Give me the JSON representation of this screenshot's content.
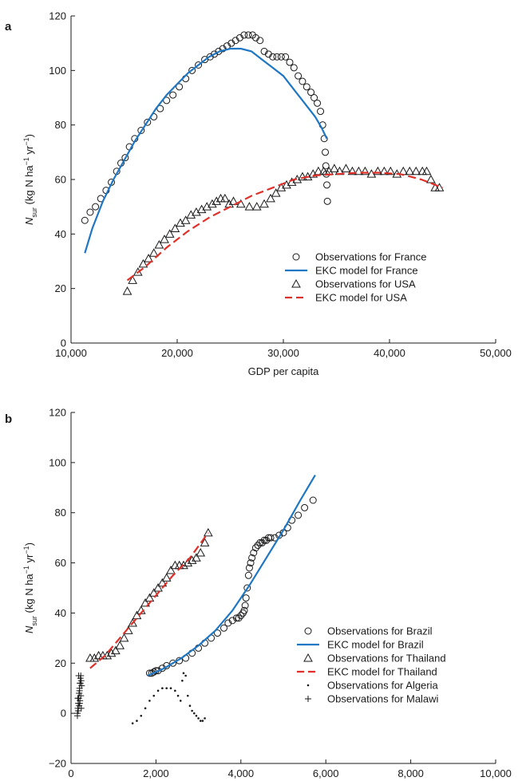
{
  "colors": {
    "france_model": "#1f77c4",
    "usa_model": "#e0302a",
    "brazil_model": "#1f77c4",
    "thailand_model": "#e0302a",
    "markers": "#1a1a1a"
  },
  "chart_data": [
    {
      "panel": "a",
      "type": "scatter",
      "xlabel": "GDP per capita",
      "ylabel": {
        "main": "N",
        "sub": "sur",
        "units_a": " (kg N ha",
        "sup1": "−1",
        "units_b": " yr",
        "sup2": "−1",
        "units_c": ")"
      },
      "xlim": [
        10000,
        50000
      ],
      "ylim": [
        0,
        120
      ],
      "xticks": [
        10000,
        20000,
        30000,
        40000,
        50000
      ],
      "xtick_labels": [
        "10,000",
        "20,000",
        "30,000",
        "40,000",
        "50,000"
      ],
      "yticks": [
        0,
        20,
        40,
        60,
        80,
        100,
        120
      ],
      "ytick_labels": [
        "0",
        "20",
        "40",
        "60",
        "80",
        "100",
        "120"
      ],
      "legend_position": "bottom-right",
      "series": [
        {
          "name": "Observations for France",
          "style": "circle",
          "x": [
            11300,
            11800,
            12300,
            12800,
            13300,
            13800,
            14300,
            14700,
            15100,
            15500,
            16000,
            16600,
            17200,
            17800,
            18400,
            19000,
            19600,
            20200,
            20800,
            21400,
            22000,
            22600,
            23100,
            23500,
            23900,
            24300,
            24700,
            25100,
            25500,
            25900,
            26300,
            26700,
            27100,
            27400,
            27800,
            28200,
            28600,
            29000,
            29400,
            29800,
            30200,
            30600,
            31000,
            31400,
            31800,
            32200,
            32600,
            32900,
            33200,
            33500,
            33700,
            33850,
            33950,
            34000,
            34050,
            34100,
            34150
          ],
          "y": [
            45,
            48,
            50,
            53,
            56,
            59,
            63,
            66,
            68,
            72,
            75,
            78,
            81,
            83,
            86,
            89,
            91,
            94,
            97,
            100,
            102,
            104,
            105,
            106,
            107,
            108,
            109,
            110,
            111,
            112,
            113,
            113,
            113,
            112,
            111,
            107,
            106,
            105,
            105,
            105,
            105,
            103,
            101,
            98,
            96,
            94,
            92,
            90,
            88,
            85,
            80,
            75,
            70,
            65,
            62,
            58,
            52
          ]
        },
        {
          "name": "EKC model for France",
          "style": "line",
          "color": "#1f77c4",
          "x": [
            11300,
            12000,
            13000,
            14000,
            15000,
            16000,
            17000,
            18000,
            19000,
            20000,
            21000,
            22000,
            23000,
            24000,
            25000,
            26000,
            27000,
            28000,
            29000,
            30000,
            31000,
            32000,
            33000,
            33600,
            34100
          ],
          "y": [
            33,
            42,
            52,
            60,
            67,
            74,
            80,
            86,
            91,
            95,
            99,
            102,
            105,
            107,
            108,
            108,
            107,
            104,
            101,
            98,
            93,
            88,
            83,
            79,
            75
          ]
        },
        {
          "name": "Observations for USA",
          "style": "triangle",
          "x": [
            15300,
            15800,
            16300,
            16800,
            17300,
            17800,
            18300,
            18800,
            19300,
            19800,
            20300,
            20800,
            21300,
            21800,
            22300,
            22800,
            23300,
            23700,
            24100,
            24500,
            24900,
            25300,
            26000,
            26800,
            27500,
            28200,
            28800,
            29300,
            29800,
            30300,
            30800,
            31300,
            31800,
            32300,
            32800,
            33300,
            33800,
            34300,
            34800,
            35300,
            35900,
            36500,
            37100,
            37700,
            38300,
            38900,
            39500,
            40100,
            40700,
            41300,
            41900,
            42500,
            43100,
            43500,
            43900,
            44300,
            44700
          ],
          "y": [
            19,
            23,
            26,
            29,
            31,
            33,
            36,
            38,
            40,
            42,
            44,
            45,
            47,
            48,
            49,
            50,
            51,
            52,
            53,
            53,
            51,
            52,
            51,
            50,
            50,
            51,
            53,
            55,
            57,
            58,
            59,
            60,
            61,
            61,
            62,
            63,
            63,
            63,
            64,
            63,
            64,
            63,
            63,
            63,
            62,
            63,
            63,
            63,
            62,
            63,
            63,
            63,
            63,
            63,
            60,
            57,
            57
          ]
        },
        {
          "name": "EKC model for USA",
          "style": "dashed",
          "color": "#e0302a",
          "x": [
            15300,
            17000,
            19000,
            21000,
            23000,
            25000,
            27000,
            29000,
            31000,
            33000,
            35000,
            37000,
            39000,
            41000,
            43000,
            45000
          ],
          "y": [
            23,
            28,
            35,
            41,
            46,
            50,
            54,
            57,
            60,
            61.5,
            62,
            62.5,
            62.5,
            62,
            60,
            57
          ]
        }
      ]
    },
    {
      "panel": "b",
      "type": "scatter",
      "xlabel": "GDP per capita",
      "ylabel": {
        "main": "N",
        "sub": "sur",
        "units_a": " (kg N ha",
        "sup1": "−1",
        "units_b": " yr",
        "sup2": "−1",
        "units_c": ")"
      },
      "xlim": [
        0,
        10000
      ],
      "ylim": [
        -20,
        120
      ],
      "xticks": [
        0,
        2000,
        4000,
        6000,
        8000,
        10000
      ],
      "xtick_labels": [
        "0",
        "2,000",
        "4,000",
        "6,000",
        "8,000",
        "10,000"
      ],
      "yticks": [
        -20,
        0,
        20,
        40,
        60,
        80,
        100,
        120
      ],
      "ytick_labels": [
        "−20",
        "0",
        "20",
        "40",
        "60",
        "80",
        "100",
        "120"
      ],
      "legend_position": "bottom-right",
      "series": [
        {
          "name": "Observations for Brazil",
          "style": "circle",
          "x": [
            1850,
            1900,
            1950,
            2000,
            2050,
            2150,
            2250,
            2400,
            2550,
            2700,
            2850,
            3000,
            3150,
            3300,
            3450,
            3600,
            3700,
            3800,
            3900,
            3950,
            4000,
            4050,
            4080,
            4100,
            4120,
            4150,
            4180,
            4200,
            4230,
            4260,
            4300,
            4350,
            4400,
            4450,
            4500,
            4550,
            4600,
            4650,
            4700,
            4800,
            4900,
            5000,
            5100,
            5200,
            5350,
            5500,
            5700
          ],
          "y": [
            16,
            16,
            16.5,
            17,
            17,
            18,
            19,
            20,
            21,
            22,
            24,
            26,
            28,
            30,
            32,
            34,
            36,
            37,
            38,
            38,
            39,
            40,
            41,
            43,
            46,
            50,
            55,
            58,
            60,
            62,
            64,
            66,
            67,
            68,
            68,
            69,
            69,
            70,
            70,
            70,
            71,
            72,
            74,
            77,
            79,
            82,
            85
          ]
        },
        {
          "name": "EKC model for Brazil",
          "style": "line",
          "color": "#1f77c4",
          "x": [
            1800,
            2200,
            2600,
            3000,
            3400,
            3800,
            4200,
            4600,
            5000,
            5400,
            5750
          ],
          "y": [
            15,
            18,
            22,
            27,
            33,
            41,
            51,
            62,
            73,
            85,
            95
          ]
        },
        {
          "name": "Observations for Thailand",
          "style": "triangle",
          "x": [
            450,
            550,
            650,
            750,
            850,
            950,
            1050,
            1150,
            1250,
            1350,
            1450,
            1550,
            1650,
            1750,
            1850,
            1950,
            2050,
            2150,
            2250,
            2350,
            2450,
            2550,
            2650,
            2750,
            2850,
            2950,
            3050,
            3150,
            3230
          ],
          "y": [
            22,
            22,
            23,
            23,
            23,
            24,
            25,
            27,
            30,
            33,
            36,
            39,
            41,
            44,
            46,
            48,
            50,
            52,
            54,
            57,
            59,
            59,
            59,
            60,
            61,
            62,
            64,
            68,
            72
          ]
        },
        {
          "name": "EKC model for Thailand",
          "style": "dashed",
          "color": "#e0302a",
          "x": [
            450,
            800,
            1200,
            1600,
            2000,
            2400,
            2800,
            3230
          ],
          "y": [
            18,
            23,
            31,
            39,
            47,
            55,
            62,
            72
          ]
        },
        {
          "name": "Observations for Algeria",
          "style": "dot",
          "x": [
            1450,
            1550,
            1650,
            1750,
            1850,
            1950,
            2050,
            2150,
            2250,
            2350,
            2450,
            2520,
            2580,
            2620,
            2650,
            2700,
            2750,
            2800,
            2850,
            2900,
            2950,
            3000,
            3050,
            3100,
            3150
          ],
          "y": [
            -4,
            -3,
            -1,
            2,
            5,
            7,
            9,
            10,
            10,
            10,
            9,
            7,
            5,
            13,
            16,
            15,
            7,
            3,
            1,
            0,
            -1,
            -2,
            -3,
            -3,
            -2
          ]
        },
        {
          "name": "Observations for Malawi",
          "style": "plus",
          "x": [
            150,
            160,
            170,
            180,
            190,
            200,
            210,
            220,
            230,
            240,
            250,
            150,
            170,
            190,
            210,
            230,
            200,
            180,
            220,
            160,
            240,
            205,
            195
          ],
          "y": [
            0,
            2,
            4,
            6,
            8,
            10,
            12,
            14,
            15,
            13,
            11,
            -1,
            1,
            3,
            5,
            7,
            9,
            15,
            12,
            6,
            2,
            4,
            8
          ]
        }
      ]
    }
  ]
}
